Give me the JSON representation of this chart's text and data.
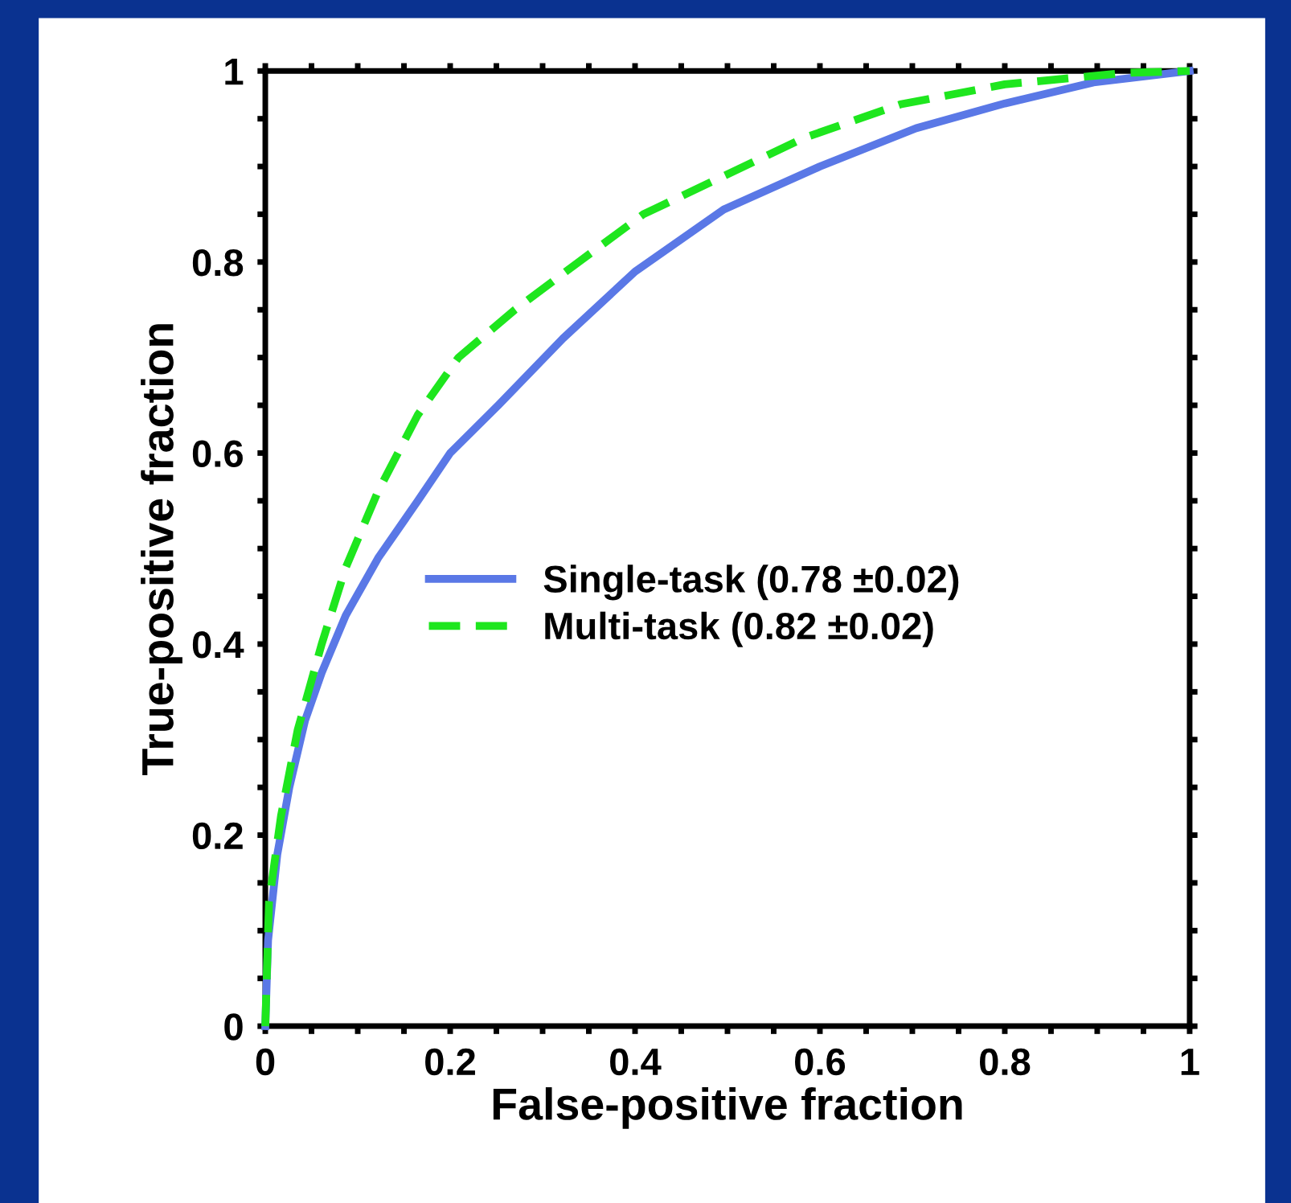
{
  "chart_data": {
    "type": "line",
    "xlabel": "False-positive fraction",
    "ylabel": "True-positive fraction",
    "xlim": [
      0,
      1
    ],
    "ylim": [
      0,
      1
    ],
    "xticks": [
      0,
      {
        "value": 0.05,
        "label": null
      },
      {
        "value": 0.1,
        "label": null
      },
      {
        "value": 0.15,
        "label": null
      },
      0.2,
      {
        "value": 0.25,
        "label": null
      },
      {
        "value": 0.3,
        "label": null
      },
      {
        "value": 0.35,
        "label": null
      },
      0.4,
      {
        "value": 0.45,
        "label": null
      },
      {
        "value": 0.5,
        "label": null
      },
      {
        "value": 0.55,
        "label": null
      },
      0.6,
      {
        "value": 0.65,
        "label": null
      },
      {
        "value": 0.7,
        "label": null
      },
      {
        "value": 0.75,
        "label": null
      },
      0.8,
      {
        "value": 0.85,
        "label": null
      },
      {
        "value": 0.9,
        "label": null
      },
      {
        "value": 0.95,
        "label": null
      },
      1
    ],
    "yticks": [
      0,
      {
        "value": 0.05,
        "label": null
      },
      {
        "value": 0.1,
        "label": null
      },
      {
        "value": 0.15,
        "label": null
      },
      0.2,
      {
        "value": 0.25,
        "label": null
      },
      {
        "value": 0.3,
        "label": null
      },
      {
        "value": 0.35,
        "label": null
      },
      0.4,
      {
        "value": 0.45,
        "label": null
      },
      {
        "value": 0.5,
        "label": null
      },
      {
        "value": 0.55,
        "label": null
      },
      0.6,
      {
        "value": 0.65,
        "label": null
      },
      {
        "value": 0.7,
        "label": null
      },
      {
        "value": 0.75,
        "label": null
      },
      0.8,
      {
        "value": 0.85,
        "label": null
      },
      {
        "value": 0.9,
        "label": null
      },
      {
        "value": 0.95,
        "label": null
      },
      1
    ],
    "grid": false,
    "legend": "center",
    "marker": "none",
    "series": [
      {
        "name": "Single-task (0.78 ±0.02)",
        "color": "#5a78e6",
        "line_style": "solid",
        "x": [
          0,
          0.003,
          0.013,
          0.026,
          0.043,
          0.061,
          0.087,
          0.122,
          0.165,
          0.2,
          0.252,
          0.322,
          0.4,
          0.496,
          0.6,
          0.704,
          0.8,
          0.896,
          1
        ],
        "values": [
          0,
          0.09,
          0.18,
          0.25,
          0.32,
          0.37,
          0.43,
          0.49,
          0.55,
          0.6,
          0.65,
          0.72,
          0.79,
          0.855,
          0.9,
          0.94,
          0.966,
          0.988,
          1
        ]
      },
      {
        "name": "Multi-task (0.82 ±0.02)",
        "color": "#1ee61e",
        "line_style": "dashed",
        "x": [
          0,
          0.004,
          0.017,
          0.035,
          0.061,
          0.087,
          0.122,
          0.165,
          0.209,
          0.27,
          0.339,
          0.409,
          0.496,
          0.583,
          0.687,
          0.8,
          0.93,
          1
        ],
        "values": [
          0,
          0.13,
          0.22,
          0.31,
          0.4,
          0.48,
          0.56,
          0.64,
          0.7,
          0.75,
          0.8,
          0.85,
          0.89,
          0.93,
          0.965,
          0.986,
          0.998,
          1
        ]
      }
    ]
  }
}
